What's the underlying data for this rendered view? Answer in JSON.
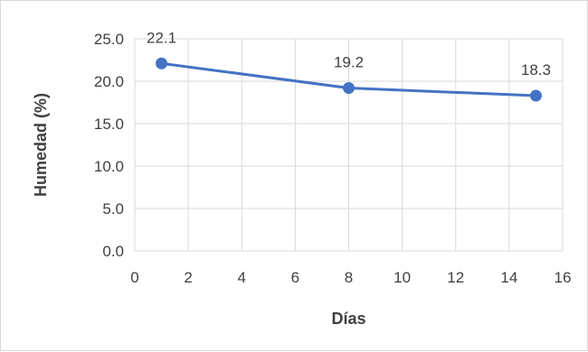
{
  "chart_data": {
    "type": "line",
    "title": "",
    "xlabel": "Días",
    "ylabel": "Humedad (%)",
    "xlim": [
      0,
      16
    ],
    "ylim": [
      0,
      25
    ],
    "x_ticks": [
      "0",
      "2",
      "4",
      "6",
      "8",
      "10",
      "12",
      "14",
      "16"
    ],
    "y_ticks": [
      "0.0",
      "5.0",
      "10.0",
      "15.0",
      "20.0",
      "25.0"
    ],
    "grid": true,
    "legend": "none",
    "series": [
      {
        "x": [
          1,
          8,
          15
        ],
        "y": [
          22.1,
          19.2,
          18.3
        ],
        "labels": [
          "22.1",
          "19.2",
          "18.3"
        ],
        "color": "#4472c4"
      }
    ],
    "colors": {
      "grid": "#d9d9d9",
      "text": "#404040",
      "line": "#4472c4"
    }
  }
}
